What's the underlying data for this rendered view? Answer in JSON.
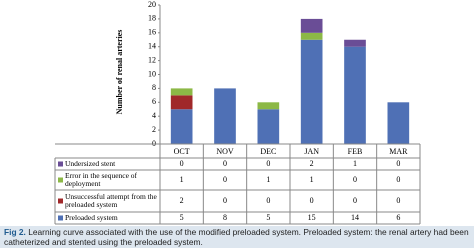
{
  "chart_data": {
    "type": "stacked-bar",
    "y_label": "Number of renal arteries",
    "categories": [
      "OCT",
      "NOV",
      "DEC",
      "JAN",
      "FEB",
      "MAR"
    ],
    "series": [
      {
        "name": "Preloaded system",
        "color": "#4f70b5",
        "values": [
          5,
          8,
          5,
          15,
          14,
          6
        ]
      },
      {
        "name": "Unsuccessful attempt from the preloaded system",
        "color": "#a0282a",
        "values": [
          2,
          0,
          0,
          0,
          0,
          0
        ]
      },
      {
        "name": "Error in the sequence of deployment",
        "color": "#8cb846",
        "values": [
          1,
          0,
          1,
          1,
          0,
          0
        ]
      },
      {
        "name": "Undersized stent",
        "color": "#6a4d96",
        "values": [
          0,
          0,
          0,
          2,
          1,
          0
        ]
      }
    ],
    "ylim": [
      0,
      20
    ],
    "yticks": [
      0,
      2,
      4,
      6,
      8,
      10,
      12,
      14,
      16,
      18,
      20
    ],
    "grid": false
  },
  "caption": {
    "label": "Fig 2.",
    "text": "Learning curve associated with the use of the modified preloaded system. Preloaded system: the renal artery had been catheterized and stented using the preloaded system."
  }
}
